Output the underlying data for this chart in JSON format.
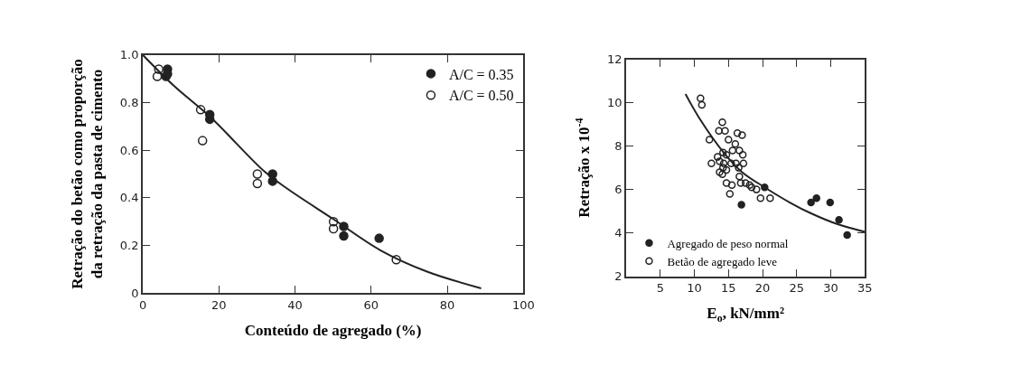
{
  "chart_data": [
    {
      "type": "scatter",
      "xlabel": "Conteúdo de agregado (%)",
      "ylabel": "Retração do betão como proporção\nda retração da pasta de cimento",
      "xlim": [
        0,
        100
      ],
      "ylim": [
        0,
        1.0
      ],
      "xticks": [
        0,
        20,
        40,
        60,
        80,
        100
      ],
      "yticks": [
        0,
        0.2,
        0.4,
        0.6,
        0.8,
        {
          "value": 1.0,
          "label": "1.0"
        }
      ],
      "legend": "top right",
      "marker": "circle",
      "series": [
        {
          "name": "A/C = 0.35",
          "color": "#222222",
          "x": [
            6.5,
            6.1,
            6.5,
            17.6,
            17.6,
            34.1,
            34.1,
            52.8,
            52.8,
            62.1
          ],
          "values": [
            0.94,
            0.91,
            0.92,
            0.75,
            0.73,
            0.5,
            0.47,
            0.28,
            0.24,
            0.23
          ]
        },
        {
          "name": "A/C = 0.50",
          "color": "#222222",
          "x": [
            4.2,
            3.8,
            15.2,
            15.7,
            30.1,
            30.1,
            50.1,
            50.1,
            66.6
          ],
          "values": [
            0.94,
            0.91,
            0.77,
            0.64,
            0.5,
            0.46,
            0.3,
            0.27,
            0.14
          ]
        },
        {
          "type": "line",
          "color": "#222222",
          "line_style": "solid",
          "marker": "none",
          "x": [
            0,
            8.2,
            17.7,
            32.0,
            37.8,
            50.1,
            62.4,
            74.7,
            88.9
          ],
          "values": [
            1.0,
            0.87,
            0.74,
            0.51,
            0.44,
            0.31,
            0.18,
            0.09,
            0.02
          ]
        }
      ]
    },
    {
      "type": "scatter",
      "xlabel": "E$_{o}$, kN/mm²",
      "ylabel": "Retração x 10$^{-4}$",
      "xlim": [
        0,
        35
      ],
      "ylim": [
        2,
        12
      ],
      "xticks": [
        5,
        10,
        15,
        20,
        25,
        30,
        35
      ],
      "yticks": [
        2,
        4,
        6,
        8,
        10,
        12
      ],
      "legend": "bottom left",
      "marker": "circle",
      "series": [
        {
          "name": "Agregado de peso normal",
          "color": "#222222",
          "x": [
            16.9,
            20.3,
            27.1,
            27.9,
            29.9,
            31.2,
            32.4
          ],
          "values": [
            5.3,
            6.1,
            5.4,
            5.6,
            5.4,
            4.6,
            3.9
          ]
        },
        {
          "name": "Betão de agregado leve",
          "color": "#222222",
          "x": [
            10.9,
            11.1,
            14.1,
            13.6,
            14.5,
            12.2,
            15.0,
            16.3,
            17.0,
            16.0,
            15.6,
            16.6,
            14.2,
            14.7,
            17.1,
            13.4,
            13.7,
            12.5,
            14.3,
            15.4,
            16.1,
            17.2,
            14.2,
            16.5,
            14.7,
            13.7,
            14.1,
            16.6,
            14.7,
            15.5,
            16.8,
            17.5,
            18.1,
            18.4,
            19.1,
            15.2,
            19.7,
            21.1
          ],
          "values": [
            10.2,
            9.9,
            9.1,
            8.7,
            8.7,
            8.3,
            8.3,
            8.6,
            8.5,
            8.1,
            7.8,
            7.8,
            7.7,
            7.6,
            7.6,
            7.5,
            7.3,
            7.2,
            7.2,
            7.2,
            7.2,
            7.2,
            7.0,
            7.0,
            6.9,
            6.8,
            6.7,
            6.6,
            6.3,
            6.2,
            6.3,
            6.3,
            6.2,
            6.1,
            6.0,
            5.8,
            5.6,
            5.6
          ]
        },
        {
          "type": "line",
          "color": "#222222",
          "line_style": "solid",
          "marker": "none",
          "x": [
            8.7,
            10.9,
            14.3,
            17.0,
            20.3,
            24.0,
            27.1,
            31.0,
            35.0
          ],
          "values": [
            10.4,
            9.2,
            7.7,
            6.8,
            6.1,
            5.4,
            4.9,
            4.4,
            4.05
          ]
        }
      ]
    }
  ]
}
